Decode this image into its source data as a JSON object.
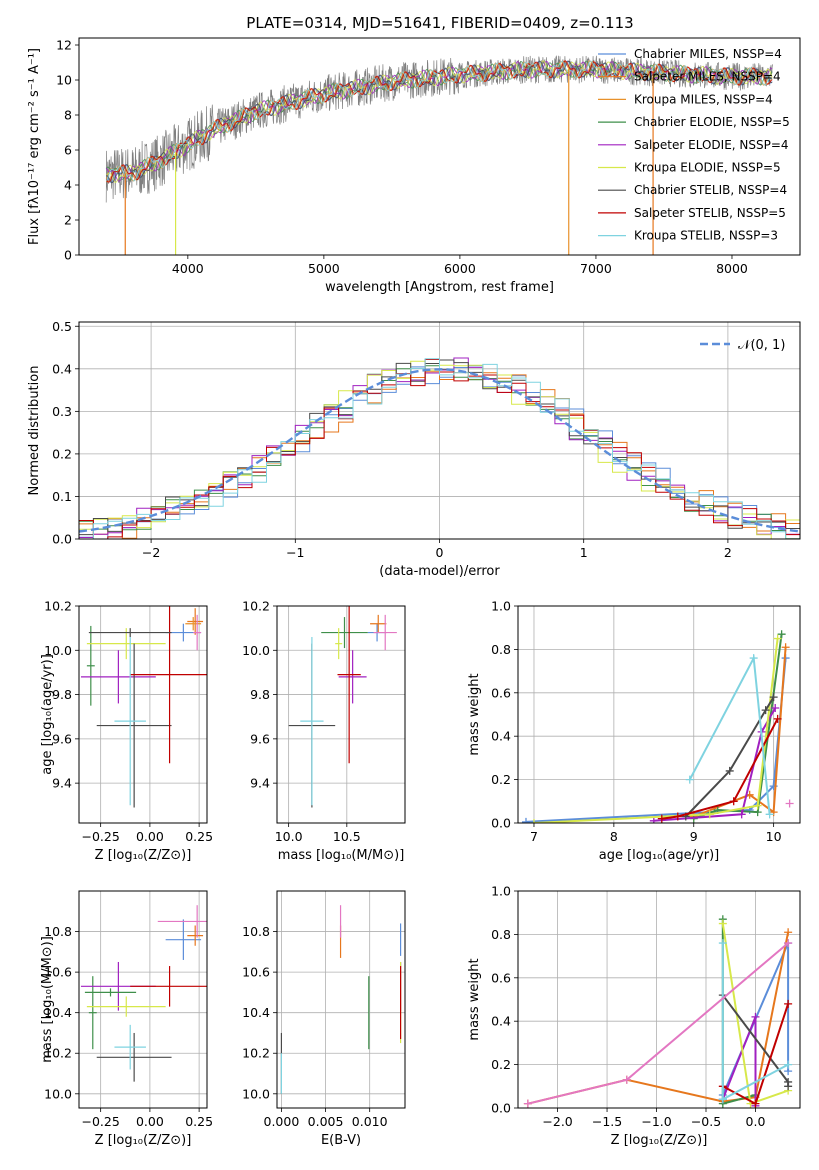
{
  "figure": {
    "title": "PLATE=0314, MJD=51641, FIBERID=0409, z=0.113"
  },
  "palette": {
    "Chabrier MILES": "#5b8dd9",
    "Salpeter MILES": "#e6771d",
    "Kroupa MILES": "#e8912b",
    "Chabrier ELODIE": "#3f8f4a",
    "Salpeter ELODIE": "#a020c0",
    "Kroupa ELODIE": "#d7e84a",
    "Chabrier STELIB": "#4a4a4a",
    "Salpeter STELIB": "#c00000",
    "Kroupa STELIB": "#7fd3e0",
    "data": "#7f7f7f",
    "gauss": "#5b8dd9",
    "pink": "#e377c2"
  },
  "chart_data": [
    {
      "type": "line",
      "panel": "spectrum",
      "xlabel": "wavelength [Angstrom, rest frame]",
      "ylabel": "Flux [fλ10⁻¹⁷ erg cm⁻² s⁻¹ A⁻¹]",
      "xlim": [
        3200,
        8500
      ],
      "ylim": [
        0,
        12.4
      ],
      "xticks": [
        4000,
        5000,
        6000,
        7000,
        8000
      ],
      "yticks": [
        0,
        2,
        4,
        6,
        8,
        10,
        12
      ],
      "grid": false,
      "legend_position": "right",
      "legend": [
        {
          "name": "Chabrier MILES, NSSP=4",
          "color": "#5b8dd9"
        },
        {
          "name": "Salpeter MILES, NSSP=4",
          "color": "#e6771d"
        },
        {
          "name": "Kroupa MILES, NSSP=4",
          "color": "#e8912b"
        },
        {
          "name": "Chabrier ELODIE, NSSP=5",
          "color": "#3f8f4a"
        },
        {
          "name": "Salpeter ELODIE, NSSP=4",
          "color": "#a020c0"
        },
        {
          "name": "Kroupa ELODIE, NSSP=5",
          "color": "#d7e84a"
        },
        {
          "name": "Chabrier STELIB, NSSP=4",
          "color": "#4a4a4a"
        },
        {
          "name": "Salpeter STELIB, NSSP=5",
          "color": "#c00000"
        },
        {
          "name": "Kroupa STELIB, NSSP=3",
          "color": "#7fd3e0"
        }
      ],
      "continuum": {
        "x": [
          3400,
          3600,
          3800,
          4000,
          4200,
          4500,
          5000,
          5500,
          6000,
          6500,
          7000,
          7500,
          8000,
          8300
        ],
        "y": [
          4.6,
          4.7,
          5.4,
          6.3,
          7.2,
          8.2,
          9.2,
          9.9,
          10.3,
          10.6,
          10.6,
          10.4,
          10.2,
          10.2
        ]
      }
    },
    {
      "type": "line",
      "panel": "residuals",
      "xlabel": "(data-model)/error",
      "ylabel": "Normed distribution",
      "xlim": [
        -2.5,
        2.5
      ],
      "ylim": [
        0,
        0.51
      ],
      "xticks": [
        -2,
        -1,
        0,
        1,
        2
      ],
      "yticks": [
        0.0,
        0.1,
        0.2,
        0.3,
        0.4,
        0.5
      ],
      "grid": true,
      "legend_position": "top-right",
      "gauss_label": "𝒩(0, 1)"
    },
    {
      "type": "scatter",
      "panel": "age-Z",
      "xlabel": "Z [log₁₀(Z/Z⊙)]",
      "ylabel": "age  [log₁₀(age/yr)]",
      "xlim": [
        -0.36,
        0.29
      ],
      "ylim": [
        9.22,
        10.2
      ],
      "xticks": [
        -0.25,
        0.0,
        0.25
      ],
      "yticks": [
        9.4,
        9.6,
        9.8,
        10.0,
        10.2
      ],
      "grid": true,
      "points": [
        {
          "series": "Chabrier MILES",
          "x": 0.17,
          "y": 10.08,
          "xerr": 0.09,
          "yerr": 0.04
        },
        {
          "series": "Salpeter MILES",
          "x": 0.23,
          "y": 10.13,
          "xerr": 0.04,
          "yerr": 0.06
        },
        {
          "series": "Kroupa MILES",
          "x": 0.22,
          "y": 10.12,
          "xerr": 0.04,
          "yerr": 0.03
        },
        {
          "series": "Chabrier ELODIE",
          "x": -0.3,
          "y": 9.93,
          "xerr": 0.02,
          "yerr": 0.18
        },
        {
          "series": "Salpeter ELODIE",
          "x": -0.16,
          "y": 9.88,
          "xerr": 0.19,
          "yerr": 0.12
        },
        {
          "series": "Kroupa ELODIE",
          "x": -0.12,
          "y": 10.03,
          "xerr": 0.2,
          "yerr": 0.07
        },
        {
          "series": "Chabrier STELIB",
          "x": -0.08,
          "y": 9.66,
          "xerr": 0.19,
          "yerr": 0.37
        },
        {
          "series": "Salpeter STELIB",
          "x": 0.1,
          "y": 9.89,
          "xerr": 0.2,
          "yerr": 0.4
        },
        {
          "series": "Kroupa STELIB",
          "x": -0.1,
          "y": 9.68,
          "xerr": 0.08,
          "yerr": 0.38
        },
        {
          "series": "Chabrier STELIB",
          "x": -0.1,
          "y": 10.08,
          "xerr": 0.21,
          "yerr": 0.02
        },
        {
          "series": "pink",
          "x": 0.24,
          "y": 10.08,
          "xerr": 0.02,
          "yerr": 0.08
        }
      ]
    },
    {
      "type": "scatter",
      "panel": "age-mass",
      "xlabel": "mass [log₁₀(M/M⊙)]",
      "xlim": [
        9.9,
        11.0
      ],
      "ylim": [
        9.22,
        10.2
      ],
      "xticks": [
        10.0,
        10.5
      ],
      "yticks": [
        9.4,
        9.6,
        9.8,
        10.0,
        10.2
      ],
      "grid": true,
      "points": [
        {
          "series": "Chabrier MILES",
          "x": 10.76,
          "y": 10.08,
          "xerr": 0.08,
          "yerr": 0.04
        },
        {
          "series": "Salpeter MILES",
          "x": 10.77,
          "y": 10.12,
          "xerr": 0.07,
          "yerr": 0.04
        },
        {
          "series": "Chabrier ELODIE",
          "x": 10.48,
          "y": 10.08,
          "xerr": 0.2,
          "yerr": 0.07
        },
        {
          "series": "Salpeter ELODIE",
          "x": 10.55,
          "y": 9.88,
          "xerr": 0.12,
          "yerr": 0.12
        },
        {
          "series": "Kroupa ELODIE",
          "x": 10.43,
          "y": 10.03,
          "xerr": 0.03,
          "yerr": 0.07
        },
        {
          "series": "Chabrier STELIB",
          "x": 10.2,
          "y": 9.66,
          "xerr": 0.2,
          "yerr": 0.37
        },
        {
          "series": "Salpeter STELIB",
          "x": 10.52,
          "y": 9.89,
          "xerr": 0.1,
          "yerr": 0.4
        },
        {
          "series": "Kroupa STELIB",
          "x": 10.2,
          "y": 9.68,
          "xerr": 0.1,
          "yerr": 0.38
        },
        {
          "series": "pink",
          "x": 10.83,
          "y": 10.08,
          "xerr": 0.1,
          "yerr": 0.08
        }
      ]
    },
    {
      "type": "line",
      "panel": "weight-age",
      "xlabel": "age  [log₁₀(age/yr)]",
      "ylabel": "mass weight",
      "xlim": [
        6.8,
        10.33
      ],
      "ylim": [
        0,
        1.0
      ],
      "xticks": [
        7,
        8,
        9,
        10
      ],
      "yticks": [
        0.0,
        0.2,
        0.4,
        0.6,
        0.8,
        1.0
      ],
      "grid": true,
      "series": [
        {
          "name": "Chabrier MILES",
          "x": [
            6.9,
            9.7,
            10.0,
            10.15
          ],
          "y": [
            0.005,
            0.06,
            0.17,
            0.76
          ]
        },
        {
          "name": "Salpeter MILES",
          "x": [
            9.0,
            9.7,
            10.0,
            10.15
          ],
          "y": [
            0.03,
            0.13,
            0.05,
            0.81
          ]
        },
        {
          "name": "Chabrier ELODIE",
          "x": [
            9.0,
            9.3,
            9.8,
            10.1
          ],
          "y": [
            0.02,
            0.06,
            0.05,
            0.87
          ]
        },
        {
          "name": "Salpeter ELODIE",
          "x": [
            8.5,
            9.6,
            9.85,
            10.02
          ],
          "y": [
            0.01,
            0.04,
            0.42,
            0.53
          ]
        },
        {
          "name": "Kroupa ELODIE",
          "x": [
            7.0,
            9.2,
            9.8,
            10.05
          ],
          "y": [
            0.0,
            0.04,
            0.08,
            0.85
          ]
        },
        {
          "name": "Chabrier STELIB",
          "x": [
            8.9,
            9.45,
            9.9,
            10.0
          ],
          "y": [
            0.03,
            0.24,
            0.52,
            0.58
          ]
        },
        {
          "name": "Salpeter STELIB",
          "x": [
            8.6,
            8.8,
            9.5,
            10.05
          ],
          "y": [
            0.02,
            0.03,
            0.1,
            0.48
          ]
        },
        {
          "name": "Kroupa STELIB",
          "x": [
            8.95,
            9.75,
            9.95
          ],
          "y": [
            0.2,
            0.76,
            0.04
          ]
        },
        {
          "name": "pink",
          "x": [
            10.2
          ],
          "y": [
            0.09
          ]
        }
      ]
    },
    {
      "type": "scatter",
      "panel": "mass-Z",
      "xlabel": "Z [log₁₀(Z/Z⊙)]",
      "ylabel": "mass [log₁₀(M/M⊙)]",
      "xlim": [
        -0.36,
        0.29
      ],
      "ylim": [
        9.93,
        11.0
      ],
      "xticks": [
        -0.25,
        0.0,
        0.25
      ],
      "yticks": [
        10.0,
        10.2,
        10.4,
        10.6,
        10.8
      ],
      "grid": true,
      "points": [
        {
          "series": "Chabrier MILES",
          "x": 0.17,
          "y": 10.76,
          "xerr": 0.09,
          "yerr": 0.1
        },
        {
          "series": "Salpeter MILES",
          "x": 0.23,
          "y": 10.78,
          "xerr": 0.04,
          "yerr": 0.05
        },
        {
          "series": "Chabrier ELODIE",
          "x": -0.29,
          "y": 10.4,
          "xerr": 0.02,
          "yerr": 0.18
        },
        {
          "series": "Salpeter ELODIE",
          "x": -0.16,
          "y": 10.53,
          "xerr": 0.19,
          "yerr": 0.12
        },
        {
          "series": "Kroupa ELODIE",
          "x": -0.12,
          "y": 10.43,
          "xerr": 0.2,
          "yerr": 0.05
        },
        {
          "series": "Chabrier ELODIE",
          "x": -0.2,
          "y": 10.5,
          "xerr": 0.13,
          "yerr": 0.02
        },
        {
          "series": "Chabrier STELIB",
          "x": -0.08,
          "y": 10.18,
          "xerr": 0.19,
          "yerr": 0.12
        },
        {
          "series": "Salpeter STELIB",
          "x": 0.1,
          "y": 10.53,
          "xerr": 0.2,
          "yerr": 0.1
        },
        {
          "series": "Kroupa STELIB",
          "x": -0.1,
          "y": 10.23,
          "xerr": 0.08,
          "yerr": 0.11
        },
        {
          "series": "pink",
          "x": 0.24,
          "y": 10.85,
          "xerr": 0.2,
          "yerr": 0.08
        }
      ]
    },
    {
      "type": "scatter",
      "panel": "mass-EBV",
      "xlabel": "E(B-V)",
      "xlim": [
        -0.0005,
        0.014
      ],
      "ylim": [
        9.93,
        11.0
      ],
      "xticks": [
        0.0,
        0.005,
        0.01
      ],
      "yticks": [
        10.0,
        10.2,
        10.4,
        10.6,
        10.8
      ],
      "grid": true,
      "points": [
        {
          "series": "Chabrier MILES",
          "x": 0.0135,
          "y": 10.76,
          "yerr": 0.08
        },
        {
          "series": "Salpeter MILES",
          "x": 0.0067,
          "y": 10.75,
          "yerr": 0.08
        },
        {
          "series": "Chabrier ELODIE",
          "x": 0.0099,
          "y": 10.4,
          "yerr": 0.18
        },
        {
          "series": "Salpeter ELODIE",
          "x": 0.0135,
          "y": 10.53,
          "yerr": 0.12
        },
        {
          "series": "Kroupa ELODIE",
          "x": 0.0135,
          "y": 10.45,
          "yerr": 0.2
        },
        {
          "series": "Chabrier STELIB",
          "x": 0.0,
          "y": 10.15,
          "yerr": 0.15
        },
        {
          "series": "Salpeter STELIB",
          "x": 0.0135,
          "y": 10.45,
          "yerr": 0.18
        },
        {
          "series": "Kroupa STELIB",
          "x": 0.0,
          "y": 10.1,
          "yerr": 0.1
        },
        {
          "series": "pink",
          "x": 0.0067,
          "y": 10.85,
          "yerr": 0.08
        }
      ]
    },
    {
      "type": "line",
      "panel": "weight-Z",
      "xlabel": "Z [log₁₀(Z/Z⊙)]",
      "ylabel": "mass weight",
      "xlim": [
        -2.4,
        0.45
      ],
      "ylim": [
        0,
        1.0
      ],
      "xticks": [
        -2.0,
        -1.5,
        -1.0,
        -0.5,
        0.0
      ],
      "yticks": [
        0.0,
        0.2,
        0.4,
        0.6,
        0.8,
        1.0
      ],
      "grid": true,
      "series": [
        {
          "name": "Chabrier MILES",
          "x": [
            -0.33,
            0.33,
            0.33
          ],
          "y": [
            0.06,
            0.76,
            0.17
          ]
        },
        {
          "name": "Salpeter MILES",
          "x": [
            -2.3,
            -1.3,
            -0.33,
            0.0,
            0.33
          ],
          "y": [
            0.02,
            0.13,
            0.03,
            0.05,
            0.81
          ]
        },
        {
          "name": "Chabrier ELODIE",
          "x": [
            -0.33,
            -0.33,
            0.0
          ],
          "y": [
            0.87,
            0.02,
            0.06
          ]
        },
        {
          "name": "Salpeter ELODIE",
          "x": [
            -0.33,
            0.0,
            0.0
          ],
          "y": [
            0.04,
            0.42,
            0.01
          ]
        },
        {
          "name": "Kroupa ELODIE",
          "x": [
            -0.33,
            -0.05,
            0.33
          ],
          "y": [
            0.85,
            0.02,
            0.08
          ]
        },
        {
          "name": "Chabrier STELIB",
          "x": [
            -0.33,
            0.33,
            0.33
          ],
          "y": [
            0.52,
            0.12,
            0.1
          ]
        },
        {
          "name": "Salpeter STELIB",
          "x": [
            -0.33,
            0.0,
            0.33
          ],
          "y": [
            0.1,
            0.02,
            0.48
          ]
        },
        {
          "name": "Kroupa STELIB",
          "x": [
            -0.33,
            -0.33,
            0.33
          ],
          "y": [
            0.76,
            0.04,
            0.2
          ]
        },
        {
          "name": "pink",
          "x": [
            -2.3,
            -1.3,
            0.33
          ],
          "y": [
            0.02,
            0.13,
            0.76
          ]
        }
      ]
    }
  ]
}
